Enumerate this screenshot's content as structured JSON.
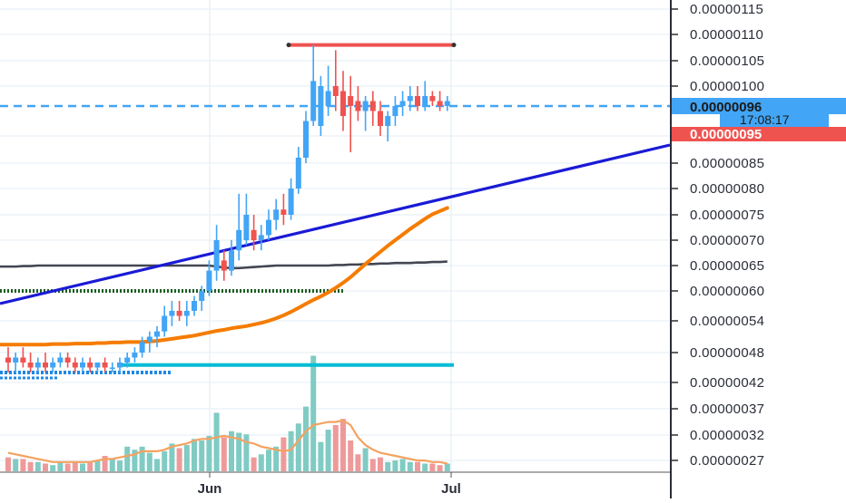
{
  "chart_data": {
    "type": "candlestick",
    "title": "",
    "colors": {
      "up": "#42a5f5",
      "down": "#ef5350",
      "volume_up": "#80cbc4",
      "volume_down": "#ef9a9a",
      "ma_short": "#434651",
      "ma_long": "#f57c00",
      "trend_line": "#1a1ad6",
      "support_line": "#00bcd4",
      "resistance_line": "#ef5350",
      "dotted_support": "#1b5e20",
      "current_price_line": "#42a5f5",
      "grid": "#e3eef5",
      "axis": "#2a2e39"
    },
    "y_axis": {
      "ticks": [
        "0.00000115",
        "0.00000110",
        "0.00000105",
        "0.00000100",
        "0.00000090",
        "0.00000085",
        "0.00000080",
        "0.00000075",
        "0.00000070",
        "0.00000065",
        "0.00000060",
        "0.00000054",
        "0.00000048",
        "0.00000042",
        "0.00000037",
        "0.00000032",
        "0.00000027"
      ],
      "tick_values": [
        1.15,
        1.1,
        1.05,
        1.0,
        0.9,
        0.85,
        0.8,
        0.75,
        0.7,
        0.65,
        0.6,
        0.54,
        0.48,
        0.42,
        0.37,
        0.32,
        0.27
      ],
      "value_unit_factor": "1e-6",
      "ylim": [
        0.255,
        1.17
      ]
    },
    "x_axis": {
      "ticks": [
        "Jun",
        "Jul"
      ]
    },
    "price_labels": {
      "last_price": "0.00000096",
      "countdown": "17:08:17",
      "previous_price": "0.00000095"
    },
    "candles_description": "daily candles from mid-April to early July",
    "candles": [
      {
        "o": 0.47,
        "h": 0.49,
        "l": 0.44,
        "c": 0.46,
        "dir": "down"
      },
      {
        "o": 0.46,
        "h": 0.48,
        "l": 0.44,
        "c": 0.47,
        "dir": "up"
      },
      {
        "o": 0.47,
        "h": 0.49,
        "l": 0.45,
        "c": 0.46,
        "dir": "down"
      },
      {
        "o": 0.46,
        "h": 0.48,
        "l": 0.44,
        "c": 0.45,
        "dir": "down"
      },
      {
        "o": 0.45,
        "h": 0.47,
        "l": 0.44,
        "c": 0.46,
        "dir": "up"
      },
      {
        "o": 0.46,
        "h": 0.48,
        "l": 0.44,
        "c": 0.45,
        "dir": "down"
      },
      {
        "o": 0.45,
        "h": 0.47,
        "l": 0.44,
        "c": 0.46,
        "dir": "up"
      },
      {
        "o": 0.46,
        "h": 0.48,
        "l": 0.45,
        "c": 0.47,
        "dir": "up"
      },
      {
        "o": 0.47,
        "h": 0.48,
        "l": 0.45,
        "c": 0.46,
        "dir": "down"
      },
      {
        "o": 0.46,
        "h": 0.47,
        "l": 0.44,
        "c": 0.45,
        "dir": "down"
      },
      {
        "o": 0.45,
        "h": 0.47,
        "l": 0.44,
        "c": 0.46,
        "dir": "up"
      },
      {
        "o": 0.46,
        "h": 0.47,
        "l": 0.44,
        "c": 0.45,
        "dir": "down"
      },
      {
        "o": 0.45,
        "h": 0.46,
        "l": 0.44,
        "c": 0.46,
        "dir": "up"
      },
      {
        "o": 0.46,
        "h": 0.47,
        "l": 0.44,
        "c": 0.45,
        "dir": "down"
      },
      {
        "o": 0.45,
        "h": 0.46,
        "l": 0.44,
        "c": 0.45,
        "dir": "up"
      },
      {
        "o": 0.45,
        "h": 0.47,
        "l": 0.44,
        "c": 0.46,
        "dir": "up"
      },
      {
        "o": 0.46,
        "h": 0.48,
        "l": 0.45,
        "c": 0.47,
        "dir": "up"
      },
      {
        "o": 0.47,
        "h": 0.49,
        "l": 0.46,
        "c": 0.48,
        "dir": "up"
      },
      {
        "o": 0.48,
        "h": 0.51,
        "l": 0.47,
        "c": 0.5,
        "dir": "up"
      },
      {
        "o": 0.5,
        "h": 0.52,
        "l": 0.48,
        "c": 0.51,
        "dir": "up"
      },
      {
        "o": 0.51,
        "h": 0.53,
        "l": 0.49,
        "c": 0.52,
        "dir": "up"
      },
      {
        "o": 0.52,
        "h": 0.57,
        "l": 0.51,
        "c": 0.55,
        "dir": "up"
      },
      {
        "o": 0.55,
        "h": 0.58,
        "l": 0.53,
        "c": 0.56,
        "dir": "up"
      },
      {
        "o": 0.56,
        "h": 0.58,
        "l": 0.54,
        "c": 0.55,
        "dir": "down"
      },
      {
        "o": 0.55,
        "h": 0.58,
        "l": 0.53,
        "c": 0.56,
        "dir": "up"
      },
      {
        "o": 0.56,
        "h": 0.59,
        "l": 0.55,
        "c": 0.58,
        "dir": "up"
      },
      {
        "o": 0.58,
        "h": 0.61,
        "l": 0.56,
        "c": 0.6,
        "dir": "up"
      },
      {
        "o": 0.6,
        "h": 0.66,
        "l": 0.59,
        "c": 0.64,
        "dir": "up"
      },
      {
        "o": 0.64,
        "h": 0.73,
        "l": 0.62,
        "c": 0.7,
        "dir": "up"
      },
      {
        "o": 0.66,
        "h": 0.68,
        "l": 0.62,
        "c": 0.64,
        "dir": "down"
      },
      {
        "o": 0.64,
        "h": 0.7,
        "l": 0.63,
        "c": 0.68,
        "dir": "up"
      },
      {
        "o": 0.68,
        "h": 0.79,
        "l": 0.66,
        "c": 0.72,
        "dir": "up"
      },
      {
        "o": 0.7,
        "h": 0.79,
        "l": 0.69,
        "c": 0.75,
        "dir": "up"
      },
      {
        "o": 0.72,
        "h": 0.75,
        "l": 0.68,
        "c": 0.7,
        "dir": "down"
      },
      {
        "o": 0.7,
        "h": 0.73,
        "l": 0.68,
        "c": 0.71,
        "dir": "up"
      },
      {
        "o": 0.71,
        "h": 0.76,
        "l": 0.7,
        "c": 0.74,
        "dir": "up"
      },
      {
        "o": 0.74,
        "h": 0.78,
        "l": 0.72,
        "c": 0.76,
        "dir": "up"
      },
      {
        "o": 0.76,
        "h": 0.79,
        "l": 0.73,
        "c": 0.75,
        "dir": "down"
      },
      {
        "o": 0.75,
        "h": 0.82,
        "l": 0.74,
        "c": 0.8,
        "dir": "up"
      },
      {
        "o": 0.8,
        "h": 0.88,
        "l": 0.79,
        "c": 0.86,
        "dir": "up"
      },
      {
        "o": 0.86,
        "h": 0.95,
        "l": 0.85,
        "c": 0.93,
        "dir": "up"
      },
      {
        "o": 0.93,
        "h": 1.08,
        "l": 0.92,
        "c": 1.01,
        "dir": "up"
      },
      {
        "o": 0.92,
        "h": 1.02,
        "l": 0.9,
        "c": 1.0,
        "dir": "up"
      },
      {
        "o": 0.96,
        "h": 1.04,
        "l": 0.94,
        "c": 0.99,
        "dir": "up"
      },
      {
        "o": 1.0,
        "h": 1.07,
        "l": 0.95,
        "c": 0.98,
        "dir": "down"
      },
      {
        "o": 0.99,
        "h": 1.03,
        "l": 0.91,
        "c": 0.94,
        "dir": "down"
      },
      {
        "o": 0.98,
        "h": 1.02,
        "l": 0.87,
        "c": 0.96,
        "dir": "down"
      },
      {
        "o": 0.97,
        "h": 1.0,
        "l": 0.93,
        "c": 0.95,
        "dir": "down"
      },
      {
        "o": 0.95,
        "h": 0.98,
        "l": 0.91,
        "c": 0.97,
        "dir": "up"
      },
      {
        "o": 0.97,
        "h": 0.99,
        "l": 0.92,
        "c": 0.95,
        "dir": "down"
      },
      {
        "o": 0.95,
        "h": 0.97,
        "l": 0.9,
        "c": 0.92,
        "dir": "down"
      },
      {
        "o": 0.92,
        "h": 0.95,
        "l": 0.89,
        "c": 0.94,
        "dir": "up"
      },
      {
        "o": 0.94,
        "h": 0.98,
        "l": 0.92,
        "c": 0.96,
        "dir": "up"
      },
      {
        "o": 0.96,
        "h": 0.99,
        "l": 0.94,
        "c": 0.97,
        "dir": "up"
      },
      {
        "o": 0.97,
        "h": 1.0,
        "l": 0.95,
        "c": 0.98,
        "dir": "up"
      },
      {
        "o": 0.98,
        "h": 1.0,
        "l": 0.95,
        "c": 0.96,
        "dir": "down"
      },
      {
        "o": 0.96,
        "h": 1.01,
        "l": 0.95,
        "c": 0.98,
        "dir": "up"
      },
      {
        "o": 0.98,
        "h": 0.99,
        "l": 0.96,
        "c": 0.97,
        "dir": "down"
      },
      {
        "o": 0.97,
        "h": 0.99,
        "l": 0.95,
        "c": 0.96,
        "dir": "down"
      },
      {
        "o": 0.96,
        "h": 0.98,
        "l": 0.95,
        "c": 0.97,
        "dir": "up"
      }
    ],
    "volume": [
      0.9,
      0.8,
      0.8,
      0.6,
      0.6,
      0.5,
      0.4,
      0.6,
      0.5,
      0.6,
      0.5,
      0.6,
      0.7,
      1.0,
      0.8,
      0.7,
      1.6,
      1.4,
      1.6,
      1.2,
      0.8,
      1.3,
      1.8,
      1.5,
      1.7,
      2.1,
      2.0,
      2.3,
      3.8,
      2.2,
      2.6,
      2.5,
      2.4,
      0.9,
      1.1,
      1.4,
      1.6,
      2.2,
      2.6,
      3.1,
      4.2,
      7.5,
      1.9,
      2.7,
      3.0,
      3.4,
      2.0,
      1.1,
      1.5,
      0.8,
      0.9,
      0.6,
      0.7,
      0.8,
      0.6,
      0.6,
      0.5,
      0.5,
      0.4,
      0.5
    ],
    "volume_ma": [
      1.2,
      1.1,
      1.0,
      0.9,
      0.8,
      0.7,
      0.6,
      0.6,
      0.6,
      0.6,
      0.6,
      0.6,
      0.7,
      0.8,
      0.8,
      0.9,
      1.0,
      1.1,
      1.3,
      1.3,
      1.3,
      1.4,
      1.6,
      1.7,
      1.8,
      2.0,
      2.1,
      2.1,
      2.2,
      2.3,
      2.2,
      2.1,
      1.9,
      1.8,
      1.6,
      1.5,
      1.4,
      1.3,
      1.4,
      2.0,
      2.6,
      3.0,
      3.1,
      3.2,
      3.2,
      3.3,
      3.0,
      2.2,
      1.7,
      1.4,
      1.2,
      1.1,
      1.0,
      0.9,
      0.8,
      0.7,
      0.7,
      0.6,
      0.6,
      0.5
    ],
    "ma_short": [
      0.648,
      0.648,
      0.649,
      0.649,
      0.65,
      0.65,
      0.65,
      0.65,
      0.65,
      0.65,
      0.65,
      0.65,
      0.65,
      0.65,
      0.65,
      0.65,
      0.65,
      0.65,
      0.65,
      0.65,
      0.65,
      0.65,
      0.65,
      0.65,
      0.65,
      0.65,
      0.65,
      0.65,
      0.648,
      0.646,
      0.645,
      0.645,
      0.646,
      0.647,
      0.648,
      0.649,
      0.65,
      0.65,
      0.65,
      0.65,
      0.65,
      0.65,
      0.65,
      0.65,
      0.651,
      0.651,
      0.652,
      0.652,
      0.653,
      0.653,
      0.654,
      0.654,
      0.655,
      0.655,
      0.655,
      0.656,
      0.656,
      0.657,
      0.657,
      0.658
    ],
    "ma_long": [
      0.495,
      0.495,
      0.495,
      0.495,
      0.495,
      0.495,
      0.496,
      0.496,
      0.496,
      0.497,
      0.497,
      0.497,
      0.498,
      0.498,
      0.499,
      0.499,
      0.5,
      0.5,
      0.5,
      0.501,
      0.502,
      0.504,
      0.506,
      0.508,
      0.51,
      0.512,
      0.515,
      0.518,
      0.521,
      0.523,
      0.526,
      0.528,
      0.53,
      0.533,
      0.536,
      0.54,
      0.545,
      0.551,
      0.558,
      0.566,
      0.574,
      0.582,
      0.589,
      0.597,
      0.606,
      0.616,
      0.627,
      0.64,
      0.653,
      0.665,
      0.677,
      0.689,
      0.7,
      0.711,
      0.722,
      0.732,
      0.742,
      0.751,
      0.757,
      0.763
    ],
    "trend_line": {
      "from_value": 0.575,
      "to_value": 0.87,
      "extends_to_axis": true
    },
    "horizontal_levels": {
      "resistance": 1.08,
      "dotted_support": 0.6,
      "support": 0.455,
      "dotted_lower": [
        0.455,
        0.445
      ]
    }
  }
}
